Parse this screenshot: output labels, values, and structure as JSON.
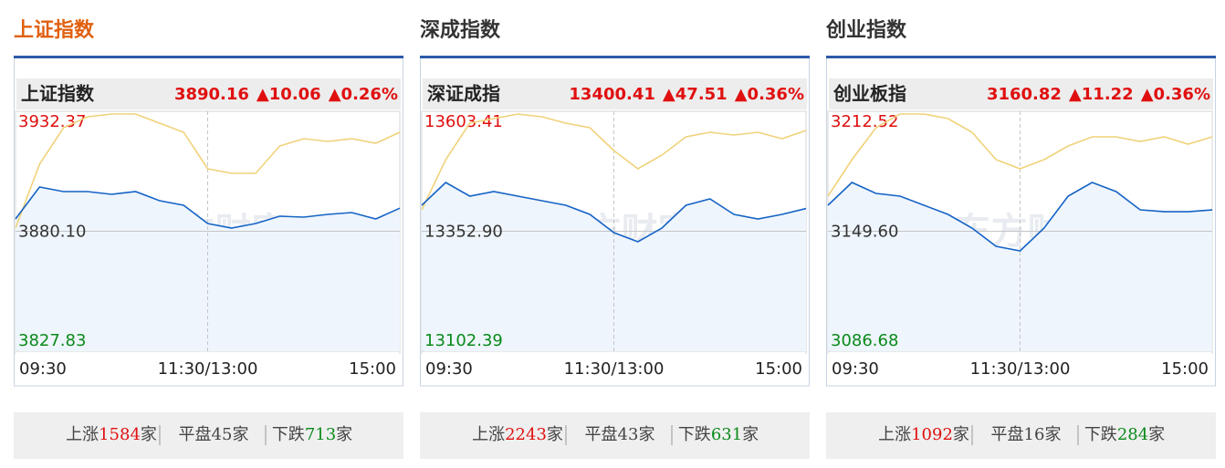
{
  "chart_data": [
    {
      "type": "line",
      "tab": "上证指数",
      "name": "上证指数",
      "price": "3890.16",
      "change": "▲10.06",
      "pct": "▲0.26%",
      "watermark": "东方财富",
      "x": [
        0,
        15,
        30,
        45,
        60,
        75,
        90,
        105,
        120,
        135,
        150,
        165,
        180,
        195,
        210,
        225,
        240
      ],
      "xlim": [
        0,
        240
      ],
      "xticks": [
        {
          "value": 0,
          "label": "09:30"
        },
        {
          "value": 120,
          "label": "11:30/13:00"
        },
        {
          "value": 240,
          "label": "15:00"
        }
      ],
      "ylim": [
        3827.83,
        3932.37
      ],
      "yticks": [
        3932.37,
        {
          "value": 3880.1,
          "label": "3880.10"
        },
        3827.83
      ],
      "series": [
        {
          "color": "#f0d27a",
          "values": [
            3881.49,
            3909.31,
            3925.21,
            3929.98,
            3931.18,
            3931.18,
            3927.2,
            3923.23,
            3907.33,
            3905.34,
            3905.34,
            3917.26,
            3920.44,
            3919.25,
            3920.44,
            3918.46,
            3923.23
          ]
        },
        {
          "color": "#1563c6",
          "values": [
            3885.46,
            3899.38,
            3897.39,
            3897.39,
            3896.2,
            3897.39,
            3893.41,
            3891.43,
            3883.48,
            3881.49,
            3883.48,
            3886.66,
            3886.26,
            3887.45,
            3888.25,
            3885.46,
            3890.16
          ]
        }
      ],
      "stats": [
        {
          "label": "上涨",
          "count": 1584,
          "unit": "家"
        },
        {
          "label": "平盘",
          "count": 45,
          "unit": "家"
        },
        {
          "label": "下跌",
          "count": 713,
          "unit": "家"
        }
      ]
    },
    {
      "type": "line",
      "tab": "深成指数",
      "name": "深证成指",
      "price": "13400.41",
      "change": "▲47.51",
      "pct": "▲0.36%",
      "watermark": "东方财富",
      "x": [
        0,
        15,
        30,
        45,
        60,
        75,
        90,
        105,
        120,
        135,
        150,
        165,
        180,
        195,
        210,
        225,
        240
      ],
      "xlim": [
        0,
        240
      ],
      "xticks": [
        {
          "value": 0,
          "label": "09:30"
        },
        {
          "value": 120,
          "label": "11:30/13:00"
        },
        {
          "value": 240,
          "label": "15:00"
        }
      ],
      "ylim": [
        13102.39,
        13603.41
      ],
      "yticks": [
        13603.41,
        {
          "value": 13352.9,
          "label": "13352.90"
        },
        13102.39
      ],
      "series": [
        {
          "color": "#f0d27a",
          "values": [
            13397.67,
            13502.44,
            13578.64,
            13588.17,
            13597.69,
            13591.98,
            13578.64,
            13569.12,
            13521.49,
            13483.39,
            13511.97,
            13550.07,
            13559.59,
            13553.88,
            13559.59,
            13546.26,
            13563.4
          ]
        },
        {
          "color": "#1563c6",
          "values": [
            13407.19,
            13454.82,
            13426.24,
            13435.77,
            13426.24,
            13416.72,
            13407.19,
            13388.14,
            13350.04,
            13330.99,
            13359.57,
            13407.19,
            13420.53,
            13388.14,
            13378.62,
            13388.14,
            13400.41
          ]
        }
      ],
      "stats": [
        {
          "label": "上涨",
          "count": 2243,
          "unit": "家"
        },
        {
          "label": "平盘",
          "count": 43,
          "unit": "家"
        },
        {
          "label": "下跌",
          "count": 631,
          "unit": "家"
        }
      ]
    },
    {
      "type": "line",
      "tab": "创业指数",
      "name": "创业板指",
      "price": "3160.82",
      "change": "▲11.22",
      "pct": "▲0.36%",
      "watermark": "东方财富",
      "x": [
        0,
        15,
        30,
        45,
        60,
        75,
        90,
        105,
        120,
        135,
        150,
        165,
        180,
        195,
        210,
        225,
        240
      ],
      "xlim": [
        0,
        240
      ],
      "xticks": [
        {
          "value": 0,
          "label": "09:30"
        },
        {
          "value": 120,
          "label": "11:30/13:00"
        },
        {
          "value": 240,
          "label": "15:00"
        }
      ],
      "ylim": [
        3086.68,
        3212.52
      ],
      "yticks": [
        3212.52,
        {
          "value": 3149.6,
          "label": "3149.60"
        },
        3086.68
      ],
      "series": [
        {
          "color": "#f0d27a",
          "values": [
            3168.02,
            3187.16,
            3203.91,
            3211.08,
            3211.08,
            3208.69,
            3201.51,
            3187.16,
            3182.37,
            3187.16,
            3194.34,
            3199.12,
            3199.12,
            3196.73,
            3199.12,
            3195.29,
            3199.12
          ]
        },
        {
          "color": "#1563c6",
          "values": [
            3163.23,
            3175.2,
            3169.45,
            3168.02,
            3163.23,
            3158.45,
            3151.27,
            3141.7,
            3139.31,
            3151.27,
            3168.02,
            3175.2,
            3170.41,
            3160.84,
            3159.88,
            3159.88,
            3160.82
          ]
        }
      ],
      "stats": [
        {
          "label": "上涨",
          "count": 1092,
          "unit": "家"
        },
        {
          "label": "平盘",
          "count": 16,
          "unit": "家"
        },
        {
          "label": "下跌",
          "count": 284,
          "unit": "家"
        }
      ]
    }
  ]
}
